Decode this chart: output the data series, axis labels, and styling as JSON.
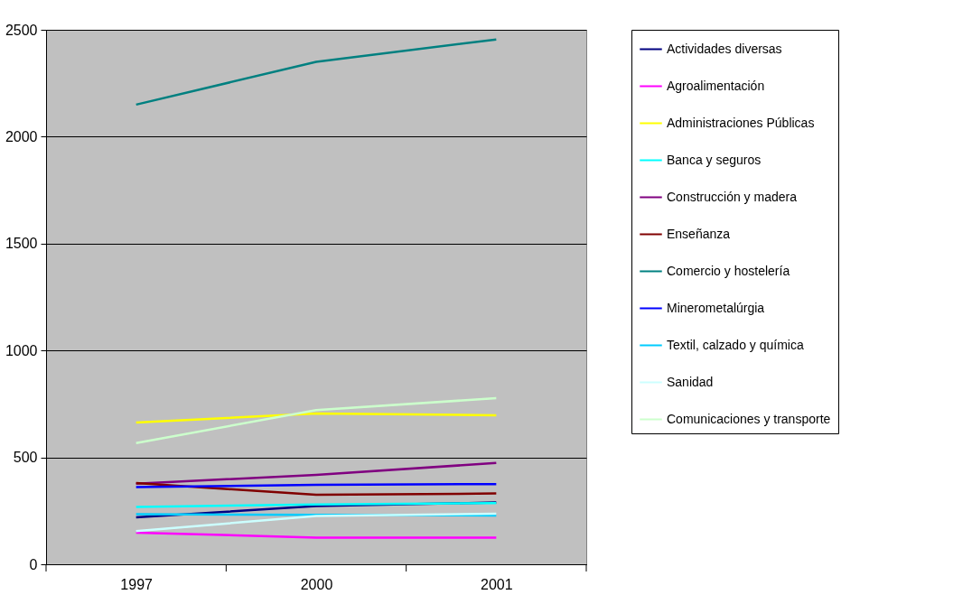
{
  "chart_data": {
    "type": "line",
    "categories": [
      "1997",
      "2000",
      "2001"
    ],
    "ylim": [
      0,
      2500
    ],
    "yticks": [
      0,
      500,
      1000,
      1500,
      2000,
      2500
    ],
    "grid": "y",
    "legend": "right",
    "marker": "none",
    "line_style": "solid",
    "series": [
      {
        "name": "Actividades diversas",
        "color": "#000080",
        "values": [
          220,
          272,
          289
        ]
      },
      {
        "name": "Agroalimentación",
        "color": "#ff00ff",
        "values": [
          148,
          125,
          125
        ]
      },
      {
        "name": "Administraciones Públicas",
        "color": "#ffff00",
        "values": [
          663,
          705,
          697
        ]
      },
      {
        "name": "Banca y seguros",
        "color": "#00ffff",
        "values": [
          268,
          280,
          286
        ]
      },
      {
        "name": "Construcción y madera",
        "color": "#800080",
        "values": [
          377,
          418,
          474
        ]
      },
      {
        "name": "Enseñanza",
        "color": "#800000",
        "values": [
          380,
          325,
          331
        ]
      },
      {
        "name": "Comercio y hostelería",
        "color": "#008080",
        "values": [
          2150,
          2350,
          2455
        ]
      },
      {
        "name": "Minerometalúrgia",
        "color": "#0000ff",
        "values": [
          361,
          372,
          375
        ]
      },
      {
        "name": "Textil, calzado y química",
        "color": "#00ccff",
        "values": [
          234,
          231,
          228
        ]
      },
      {
        "name": "Sanidad",
        "color": "#ccffff",
        "values": [
          155,
          226,
          236
        ]
      },
      {
        "name": "Comunicaciones y transporte",
        "color": "#ccffcc",
        "values": [
          567,
          721,
          777
        ]
      }
    ]
  }
}
